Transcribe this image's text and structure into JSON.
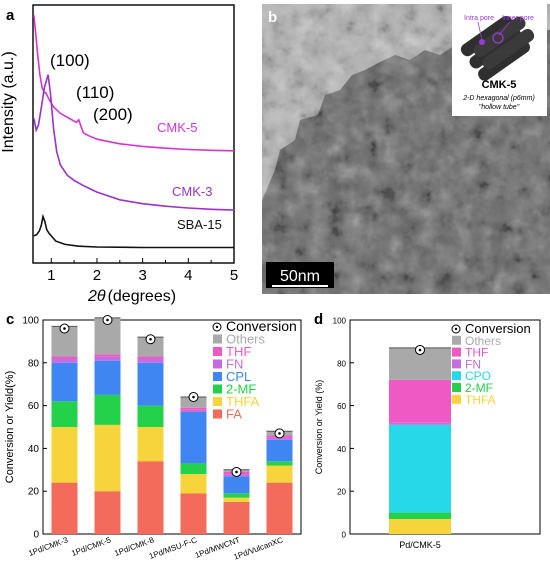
{
  "panels": {
    "a": "a",
    "b": "b",
    "c": "c",
    "d": "d"
  },
  "chart_data": [
    {
      "type": "line",
      "panel": "a",
      "ylabel": "Intensity (a.u.)",
      "xlabel": "2θ (degrees)",
      "xlabel_theta": "2θ",
      "xlabel_unit": "(degrees)",
      "xlim": [
        0.6,
        5
      ],
      "xticks": [
        "1",
        "2",
        "3",
        "4",
        "5"
      ],
      "peak_labels": [
        "(100)",
        "(110)",
        "(200)"
      ],
      "series": [
        {
          "name": "CMK-5",
          "color": "#d633d6",
          "x": [
            0.62,
            0.66,
            0.7,
            0.75,
            0.8,
            0.85,
            0.88,
            0.95,
            1.05,
            1.2,
            1.4,
            1.55,
            1.6,
            1.65,
            1.7,
            1.8,
            2.0,
            2.5,
            3.0,
            3.5,
            4.0,
            4.5,
            5.0
          ],
          "y": [
            9.6,
            8.9,
            8.1,
            7.3,
            6.8,
            6.6,
            6.6,
            6.35,
            6.05,
            5.8,
            5.6,
            5.45,
            5.55,
            5.3,
            5.05,
            4.95,
            4.8,
            4.62,
            4.52,
            4.45,
            4.4,
            4.37,
            4.35
          ]
        },
        {
          "name": "CMK-3",
          "color": "#9a33c8",
          "x": [
            0.62,
            0.67,
            0.72,
            0.78,
            0.85,
            0.93,
            0.98,
            1.05,
            1.12,
            1.2,
            1.35,
            1.5,
            1.7,
            2.0,
            2.5,
            3.0,
            3.5,
            4.0,
            4.5,
            5.0
          ],
          "y": [
            5.6,
            5.15,
            5.35,
            6.0,
            6.8,
            7.3,
            6.6,
            5.2,
            4.3,
            3.8,
            3.4,
            3.2,
            3.0,
            2.75,
            2.45,
            2.3,
            2.2,
            2.13,
            2.08,
            2.05
          ]
        },
        {
          "name": "SBA-15",
          "color": "#111111",
          "x": [
            0.62,
            0.68,
            0.74,
            0.78,
            0.82,
            0.86,
            0.9,
            0.95,
            1.0,
            1.1,
            1.3,
            1.6,
            2.0,
            3.0,
            4.0,
            5.0
          ],
          "y": [
            1.05,
            1.1,
            1.25,
            1.45,
            1.8,
            1.6,
            1.3,
            1.15,
            1.05,
            0.85,
            0.72,
            0.65,
            0.62,
            0.6,
            0.6,
            0.6
          ]
        }
      ]
    },
    {
      "type": "bar",
      "panel": "c",
      "ylabel": "Conversion or Yield(%)",
      "ylim": [
        0,
        100
      ],
      "yticks": [
        "0",
        "20",
        "40",
        "60",
        "80",
        "100"
      ],
      "categories": [
        "1Pd/CMK-3",
        "1Pd/CMK-5",
        "1Pd/CMK-8",
        "1Pd/MSU-F-C",
        "1Pd/MWCNT",
        "1Pd/VulcanXC"
      ],
      "legend": [
        "Conversion",
        "Others",
        "THF",
        "FN",
        "CPL",
        "2-MF",
        "THFA",
        "FA"
      ],
      "series": [
        {
          "name": "FA",
          "color": "#f36b5a",
          "values": [
            24,
            20,
            34,
            19,
            15,
            24
          ]
        },
        {
          "name": "THFA",
          "color": "#f8d43c",
          "values": [
            26,
            31,
            16,
            9,
            2,
            8
          ]
        },
        {
          "name": "2-MF",
          "color": "#24d14a",
          "values": [
            12,
            14,
            10,
            5,
            2,
            2
          ]
        },
        {
          "name": "CPL",
          "color": "#3f86f2",
          "values": [
            18,
            16,
            20,
            24,
            8,
            10
          ]
        },
        {
          "name": "FN",
          "color": "#c46de0",
          "values": [
            2,
            2,
            2,
            1,
            1,
            1
          ]
        },
        {
          "name": "THF",
          "color": "#ef59c4",
          "values": [
            1,
            1,
            1,
            1,
            1,
            1
          ]
        },
        {
          "name": "Others",
          "color": "#a9a9a9",
          "values": [
            14,
            17,
            9,
            5,
            1,
            2
          ]
        }
      ],
      "conversion": [
        96,
        100,
        91,
        64,
        29,
        47
      ]
    },
    {
      "type": "bar",
      "panel": "d",
      "ylabel": "Conversion or Yield (%)",
      "ylim": [
        0,
        100
      ],
      "yticks": [
        "0",
        "20",
        "40",
        "60",
        "80",
        "100"
      ],
      "categories": [
        "Pd/CMK-5"
      ],
      "legend": [
        "Conversion",
        "Others",
        "THF",
        "FN",
        "CPO",
        "2-MF",
        "THFA"
      ],
      "series": [
        {
          "name": "THFA",
          "color": "#f8d43c",
          "values": [
            7
          ]
        },
        {
          "name": "2-MF",
          "color": "#24d14a",
          "values": [
            3
          ]
        },
        {
          "name": "CPO",
          "color": "#27d8e8",
          "values": [
            41
          ]
        },
        {
          "name": "FN",
          "color": "#c46de0",
          "values": [
            1
          ]
        },
        {
          "name": "THF",
          "color": "#ef59c4",
          "values": [
            20
          ]
        },
        {
          "name": "Others",
          "color": "#a9a9a9",
          "values": [
            15
          ]
        }
      ],
      "conversion": [
        86
      ]
    }
  ],
  "tem": {
    "scalebar": "50nm",
    "inset_title": "CMK-5",
    "inset_sub": "2-D hexagonal (p6mm)",
    "inset_sub2": "\"hollow tube\"",
    "intra_pore": "Intra pore",
    "inner_pore": "Inner pore"
  }
}
